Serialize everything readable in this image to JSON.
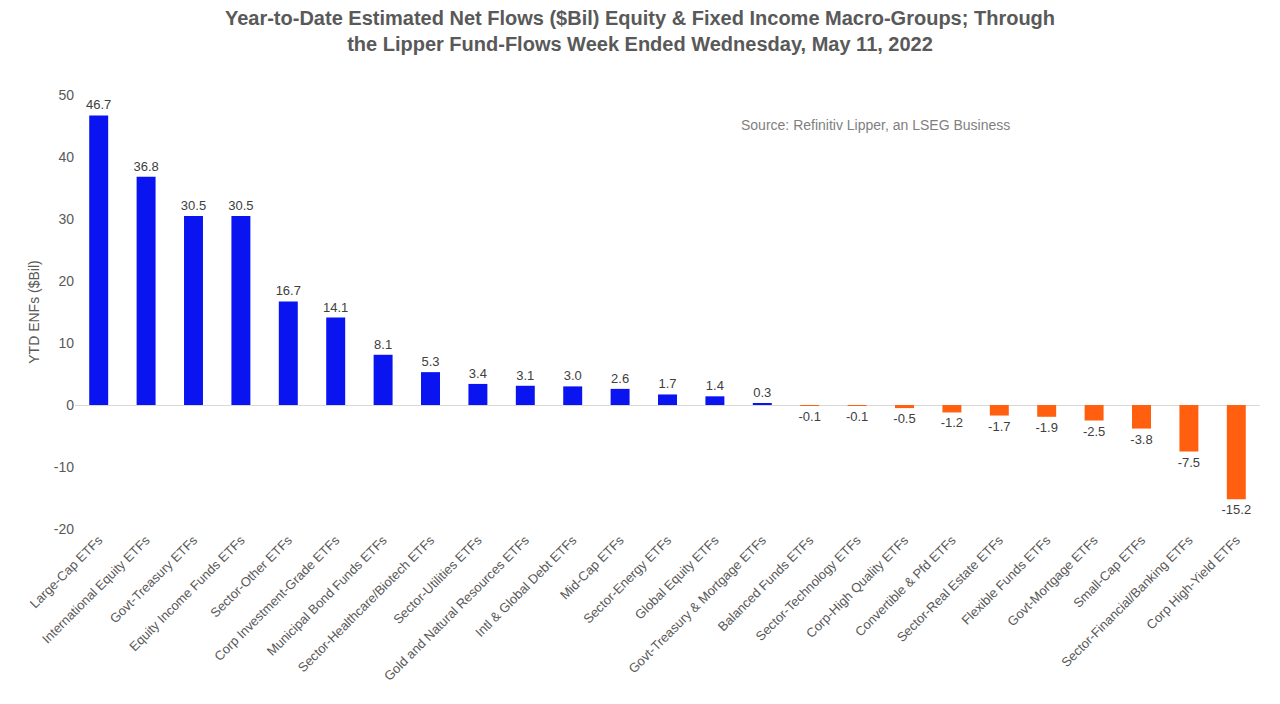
{
  "chart_data": {
    "type": "bar",
    "title": "Year-to-Date Estimated Net Flows ($Bil) Equity & Fixed Income Macro-Groups; Through\nthe Lipper Fund-Flows Week Ended Wednesday, May 11, 2022",
    "y_label": "YTD ENFs ($Bil)",
    "annotations": [
      "Source: Refinitiv Lipper, an LSEG Business"
    ],
    "categories": [
      "Large-Cap ETFs",
      "International Equity ETFs",
      "Govt-Treasury ETFs",
      "Equity Income Funds ETFs",
      "Sector-Other ETFs",
      "Corp Investment-Grade ETFs",
      "Municipal Bond Funds ETFs",
      "Sector-Healthcare/Biotech ETFs",
      "Sector-Utilities ETFs",
      "Gold and Natural Resources ETFs",
      "Intl & Global Debt ETFs",
      "Mid-Cap ETFs",
      "Sector-Energy ETFs",
      "Global Equity ETFs",
      "Govt-Treasury & Mortgage ETFs",
      "Balanced Funds ETFs",
      "Sector-Technology ETFs",
      "Corp-High Quality ETFs",
      "Convertible & Pfd ETFs",
      "Sector-Real Estate ETFs",
      "Flexible Funds ETFs",
      "Govt-Mortgage ETFs",
      "Small-Cap ETFs",
      "Sector-Financial/Banking ETFs",
      "Corp High-Yield ETFs"
    ],
    "values": [
      46.7,
      36.8,
      30.5,
      30.5,
      16.7,
      14.1,
      8.1,
      5.3,
      3.4,
      3.1,
      3.0,
      2.6,
      1.7,
      1.4,
      0.3,
      -0.1,
      -0.1,
      -0.5,
      -1.2,
      -1.7,
      -1.9,
      -2.5,
      -3.8,
      -7.5,
      -15.2
    ],
    "value_labels": [
      "46.7",
      "36.8",
      "30.5",
      "30.5",
      "16.7",
      "14.1",
      "8.1",
      "5.3",
      "3.4",
      "3.1",
      "3.0",
      "2.6",
      "1.7",
      "1.4",
      "0.3",
      "-0.1",
      "-0.1",
      "-0.5",
      "-1.2",
      "-1.7",
      "-1.9",
      "-2.5",
      "-3.8",
      "-7.5",
      "-15.2"
    ],
    "colors": [
      "#0a14f0",
      "#0a14f0",
      "#0a14f0",
      "#0a14f0",
      "#0a14f0",
      "#0a14f0",
      "#0a14f0",
      "#0a14f0",
      "#0a14f0",
      "#0a14f0",
      "#0a14f0",
      "#0a14f0",
      "#0a14f0",
      "#0a14f0",
      "#0a14f0",
      "#ff5f0f",
      "#ff5f0f",
      "#ff5f0f",
      "#ff5f0f",
      "#ff5f0f",
      "#ff5f0f",
      "#ff5f0f",
      "#ff5f0f",
      "#ff5f0f",
      "#ff5f0f"
    ],
    "ylim": [
      -20,
      50
    ],
    "yticks": [
      -20,
      -10,
      0,
      10,
      20,
      30,
      40,
      50
    ],
    "grid": false,
    "data_labels": true
  }
}
